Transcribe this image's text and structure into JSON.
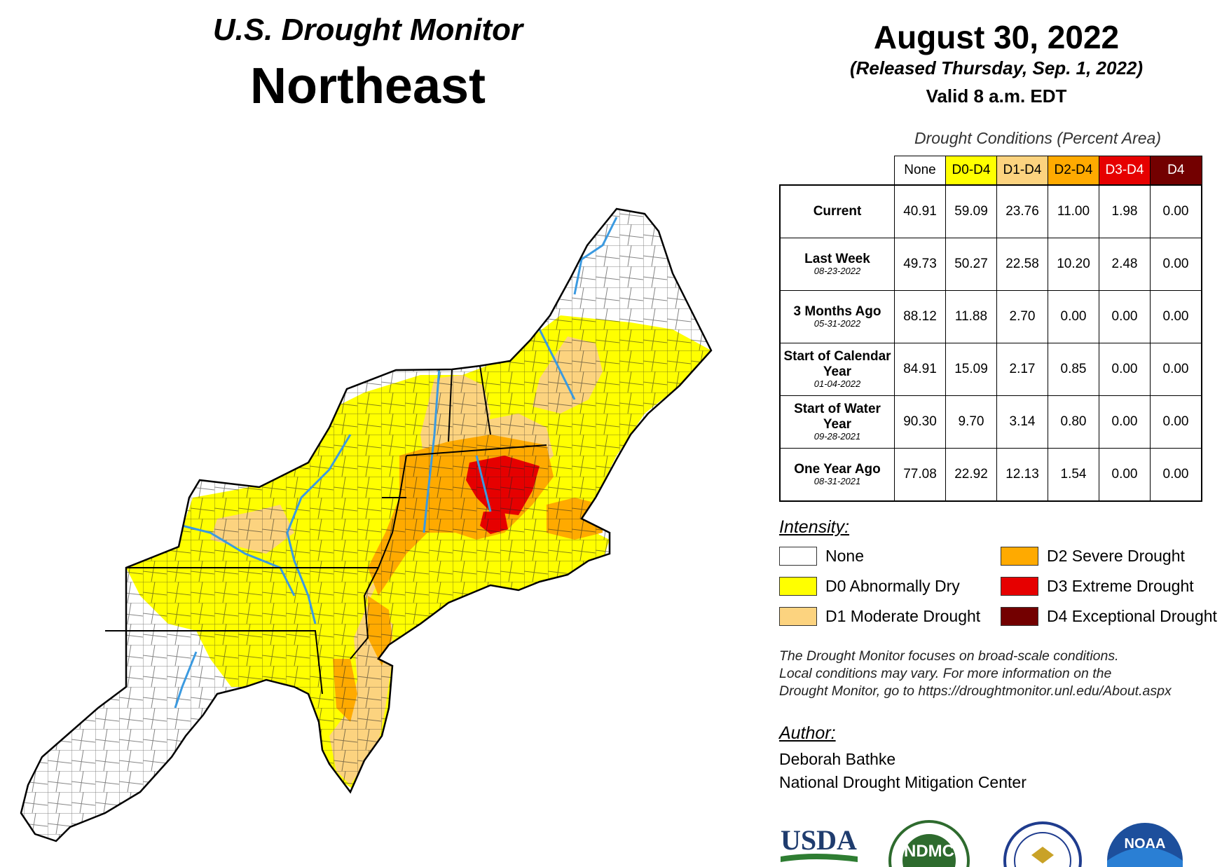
{
  "header": {
    "monitor_title": "U.S. Drought Monitor",
    "region": "Northeast",
    "date": "August 30, 2022",
    "release": "(Released Thursday, Sep. 1, 2022)",
    "valid": "Valid 8 a.m. EDT"
  },
  "table": {
    "caption": "Drought Conditions (Percent Area)",
    "columns": [
      {
        "label": "None",
        "color": "#ffffff",
        "text_color": "#000000"
      },
      {
        "label": "D0-D4",
        "color": "#ffff00",
        "text_color": "#000000"
      },
      {
        "label": "D1-D4",
        "color": "#fcd37f",
        "text_color": "#000000"
      },
      {
        "label": "D2-D4",
        "color": "#ffaa00",
        "text_color": "#000000"
      },
      {
        "label": "D3-D4",
        "color": "#e60000",
        "text_color": "#ffffff"
      },
      {
        "label": "D4",
        "color": "#730000",
        "text_color": "#ffffff"
      }
    ],
    "rows": [
      {
        "label": "Current",
        "date": "",
        "values": [
          "40.91",
          "59.09",
          "23.76",
          "11.00",
          "1.98",
          "0.00"
        ]
      },
      {
        "label": "Last Week",
        "date": "08-23-2022",
        "values": [
          "49.73",
          "50.27",
          "22.58",
          "10.20",
          "2.48",
          "0.00"
        ]
      },
      {
        "label": "3 Months Ago",
        "date": "05-31-2022",
        "values": [
          "88.12",
          "11.88",
          "2.70",
          "0.00",
          "0.00",
          "0.00"
        ]
      },
      {
        "label": "Start of Calendar Year",
        "date": "01-04-2022",
        "values": [
          "84.91",
          "15.09",
          "2.17",
          "0.85",
          "0.00",
          "0.00"
        ]
      },
      {
        "label": "Start of Water Year",
        "date": "09-28-2021",
        "values": [
          "90.30",
          "9.70",
          "3.14",
          "0.80",
          "0.00",
          "0.00"
        ]
      },
      {
        "label": "One Year Ago",
        "date": "08-31-2021",
        "values": [
          "77.08",
          "22.92",
          "12.13",
          "1.54",
          "0.00",
          "0.00"
        ]
      }
    ]
  },
  "legend": {
    "title": "Intensity:",
    "items": [
      {
        "label": "None",
        "color": "#ffffff"
      },
      {
        "label": "D0 Abnormally Dry",
        "color": "#ffff00"
      },
      {
        "label": "D1 Moderate Drought",
        "color": "#fcd37f"
      },
      {
        "label": "D2 Severe Drought",
        "color": "#ffaa00"
      },
      {
        "label": "D3 Extreme Drought",
        "color": "#e60000"
      },
      {
        "label": "D4 Exceptional Drought",
        "color": "#730000"
      }
    ]
  },
  "disclaimer": {
    "line1": "The Drought Monitor focuses on broad-scale conditions.",
    "line2": "Local conditions may vary. For more information on the",
    "line3": "Drought Monitor, go to https://droughtmonitor.unl.edu/About.aspx"
  },
  "author": {
    "title": "Author:",
    "name": "Deborah Bathke",
    "org": "National Drought Mitigation Center"
  },
  "logos": {
    "usda": "USDA",
    "ndmc": "NDMC",
    "noaa": "NOAA"
  }
}
